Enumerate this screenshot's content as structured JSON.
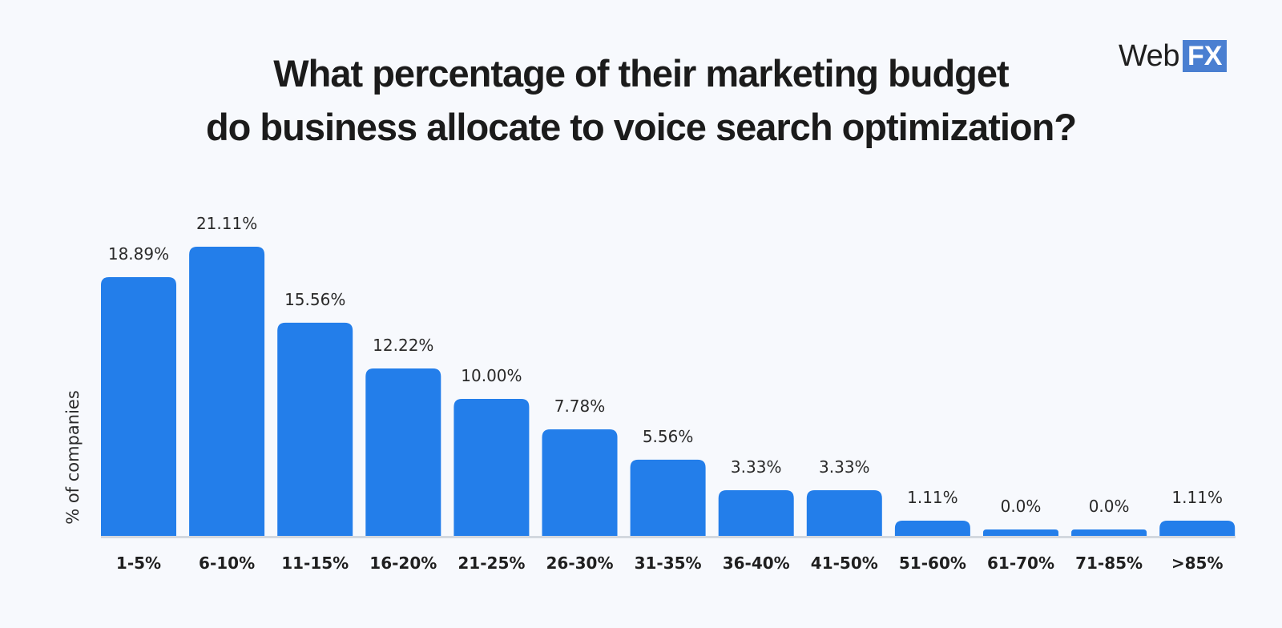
{
  "brand": {
    "web": "Web",
    "fx": "FX",
    "bar_color": "#237eea",
    "axis_color": "#d3d8df",
    "fx_color": "#4a7fd1"
  },
  "chart_data": {
    "type": "bar",
    "title_line1": "What percentage of their marketing budget",
    "title_line2": "do business allocate to voice search optimization?",
    "xlabel": "",
    "ylabel": "% of companies",
    "categories": [
      "1-5%",
      "6-10%",
      "11-15%",
      "16-20%",
      "21-25%",
      "26-30%",
      "31-35%",
      "36-40%",
      "41-50%",
      "51-60%",
      "61-70%",
      "71-85%",
      ">85%"
    ],
    "values": [
      18.89,
      21.11,
      15.56,
      12.22,
      10.0,
      7.78,
      5.56,
      3.33,
      3.33,
      1.11,
      0.0,
      0.0,
      1.11
    ],
    "value_labels": [
      "18.89%",
      "21.11%",
      "15.56%",
      "12.22%",
      "10.00%",
      "7.78%",
      "5.56%",
      "3.33%",
      "3.33%",
      "1.11%",
      "0.0%",
      "0.0%",
      "1.11%"
    ],
    "grid": false,
    "legend": "none"
  }
}
